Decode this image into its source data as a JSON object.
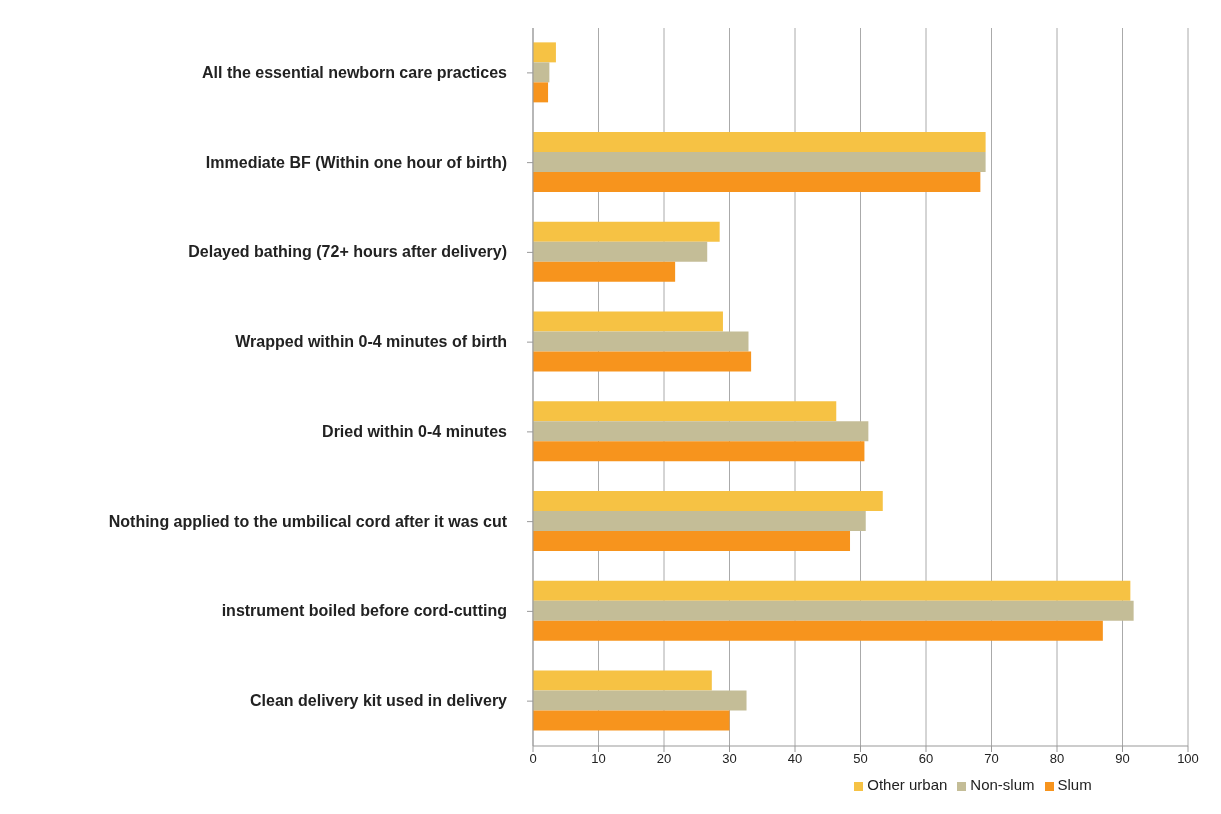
{
  "chart_data": {
    "type": "bar",
    "orientation": "horizontal",
    "categories": [
      "All the essential newborn care practices",
      "Immediate BF (Within one hour of birth)",
      "Delayed bathing (72+ hours after delivery)",
      "Wrapped within 0-4 minutes of birth",
      "Dried within 0-4 minutes",
      "Nothing applied to the umbilical cord after it was cut",
      "instrument boiled before cord-cutting",
      "Clean delivery kit used in delivery"
    ],
    "series": [
      {
        "name": "Other urban",
        "color": "#f6c244",
        "values": [
          3.5,
          69.1,
          28.5,
          29.0,
          46.3,
          53.4,
          91.2,
          27.3
        ]
      },
      {
        "name": "Non-slum",
        "color": "#c4bd97",
        "values": [
          2.5,
          69.1,
          26.6,
          32.9,
          51.2,
          50.8,
          91.7,
          32.6
        ]
      },
      {
        "name": "Slum",
        "color": "#f7941d",
        "values": [
          2.3,
          68.3,
          21.7,
          33.3,
          50.6,
          48.4,
          87.0,
          30.0
        ]
      }
    ],
    "xlim": [
      0,
      100
    ],
    "xticks": [
      0,
      10,
      20,
      30,
      40,
      50,
      60,
      70,
      80,
      90,
      100
    ],
    "grid": "x",
    "legend": "bottom"
  }
}
